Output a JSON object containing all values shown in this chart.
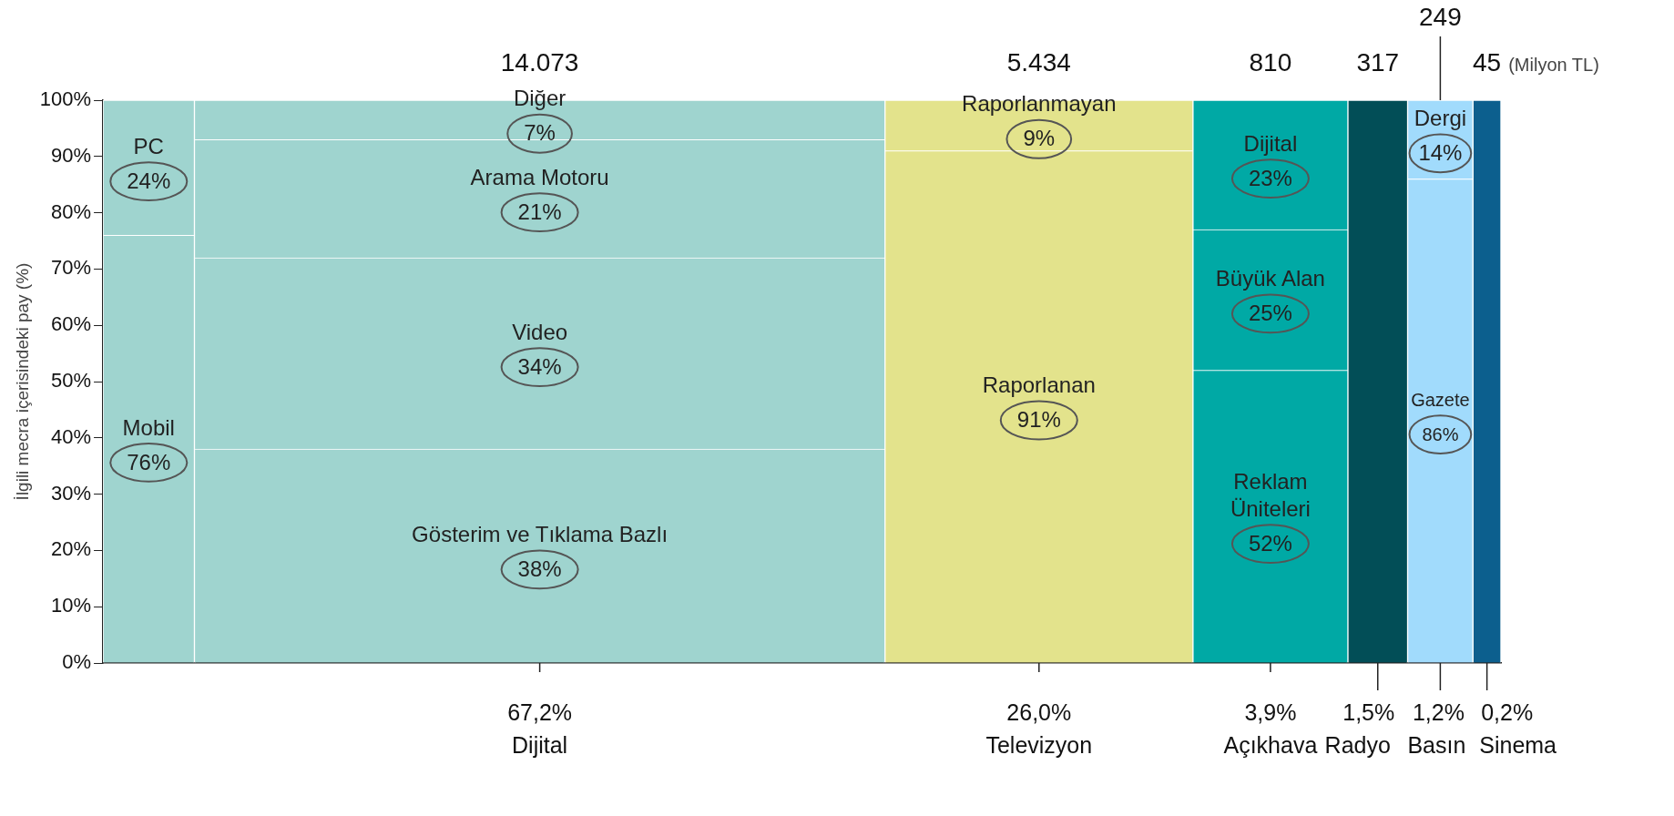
{
  "chart_data": {
    "type": "bar",
    "stacked": true,
    "ylabel": "İlgili mecra içerisindeki pay (%)",
    "categories": [
      null,
      "Dijital",
      "Televizyon",
      "Açıkhava",
      "Radyo",
      "Basın",
      "Sinema"
    ],
    "ylim": [
      0,
      100
    ],
    "yticks": [
      {
        "value": 0,
        "label": "0%"
      },
      {
        "value": 10,
        "label": "10%"
      },
      {
        "value": 20,
        "label": "20%"
      },
      {
        "value": 30,
        "label": "30%"
      },
      {
        "value": 40,
        "label": "40%"
      },
      {
        "value": 50,
        "label": "50%"
      },
      {
        "value": 60,
        "label": "60%"
      },
      {
        "value": 70,
        "label": "70%"
      },
      {
        "value": 80,
        "label": "80%"
      },
      {
        "value": 90,
        "label": "90%"
      },
      {
        "value": 100,
        "label": "100%"
      }
    ],
    "series": [
      {
        "name": "Mobil",
        "color": "#9fd4cf",
        "values": [
          76,
          null,
          null,
          null,
          null,
          null,
          null
        ],
        "value_labels": [
          "76%",
          null,
          null,
          null,
          null,
          null,
          null
        ]
      },
      {
        "name": "PC",
        "color": "#9fd4cf",
        "values": [
          24,
          null,
          null,
          null,
          null,
          null,
          null
        ],
        "value_labels": [
          "24%",
          null,
          null,
          null,
          null,
          null,
          null
        ]
      },
      {
        "name": "Gösterim ve Tıklama Bazlı",
        "color": "#9fd4cf",
        "values": [
          null,
          38,
          null,
          null,
          null,
          null,
          null
        ],
        "value_labels": [
          null,
          "38%",
          null,
          null,
          null,
          null,
          null
        ]
      },
      {
        "name": "Video",
        "color": "#9fd4cf",
        "values": [
          null,
          34,
          null,
          null,
          null,
          null,
          null
        ],
        "value_labels": [
          null,
          "34%",
          null,
          null,
          null,
          null,
          null
        ]
      },
      {
        "name": "Arama Motoru",
        "color": "#9fd4cf",
        "values": [
          null,
          21,
          null,
          null,
          null,
          null,
          null
        ],
        "value_labels": [
          null,
          "21%",
          null,
          null,
          null,
          null,
          null
        ]
      },
      {
        "name": "Diğer",
        "color": "#9fd4cf",
        "values": [
          null,
          7,
          null,
          null,
          null,
          null,
          null
        ],
        "value_labels": [
          null,
          "7%",
          null,
          null,
          null,
          null,
          null
        ]
      },
      {
        "name": "Raporlanan",
        "color": "#e3e38c",
        "values": [
          null,
          null,
          91,
          null,
          null,
          null,
          null
        ],
        "value_labels": [
          null,
          null,
          "91%",
          null,
          null,
          null,
          null
        ]
      },
      {
        "name": "Raporlanmayan",
        "color": "#e3e38c",
        "values": [
          null,
          null,
          9,
          null,
          null,
          null,
          null
        ],
        "value_labels": [
          null,
          null,
          "9%",
          null,
          null,
          null,
          null
        ]
      },
      {
        "name": "Reklam Üniteleri",
        "color": "#00a9a5",
        "values": [
          null,
          null,
          null,
          52,
          null,
          null,
          null
        ],
        "value_labels": [
          null,
          null,
          null,
          "52%",
          null,
          null,
          null
        ]
      },
      {
        "name": "Büyük Alan",
        "color": "#00a9a5",
        "values": [
          null,
          null,
          null,
          25,
          null,
          null,
          null
        ],
        "value_labels": [
          null,
          null,
          null,
          "25%",
          null,
          null,
          null
        ]
      },
      {
        "name": "Dijital",
        "color": "#00a9a5",
        "values": [
          null,
          null,
          null,
          23,
          null,
          null,
          null
        ],
        "value_labels": [
          null,
          null,
          null,
          "23%",
          null,
          null,
          null
        ]
      },
      {
        "color": "#024e57",
        "values": [
          null,
          null,
          null,
          null,
          100,
          null,
          null
        ]
      },
      {
        "name": "Gazete",
        "color": "#a1dbfc",
        "values": [
          null,
          null,
          null,
          null,
          null,
          86,
          null
        ],
        "value_labels": [
          null,
          null,
          null,
          null,
          null,
          "86%",
          null
        ]
      },
      {
        "name": "Dergi",
        "color": "#a1dbfc",
        "values": [
          null,
          null,
          null,
          null,
          null,
          14,
          null
        ],
        "value_labels": [
          null,
          null,
          null,
          null,
          null,
          "14%",
          null
        ]
      },
      {
        "color": "#0c5f8e",
        "values": [
          null,
          null,
          null,
          null,
          null,
          null,
          100
        ]
      }
    ],
    "annotations": [
      "14.073",
      "5.434",
      "810",
      "317",
      "249",
      "45",
      "(Milyon TL)",
      "67,2%",
      "26,0%",
      "3,9%",
      "1,5%",
      "1,2%",
      "0,2%"
    ]
  }
}
